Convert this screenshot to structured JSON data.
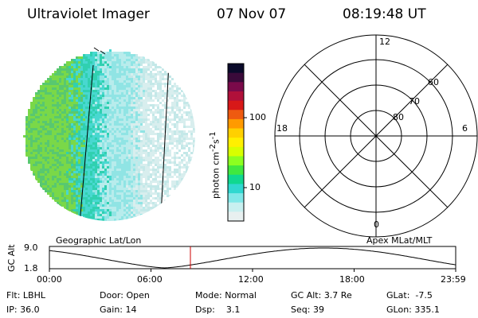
{
  "header": {
    "instrument": "Ultraviolet Imager",
    "date": "07 Nov 07",
    "time": "08:19:48 UT"
  },
  "colorbar": {
    "unit": "photon cm",
    "unit_exp1": "-2",
    "unit_mid": "s",
    "unit_exp2": "-1",
    "ticks": [
      "100",
      "10"
    ],
    "colors": [
      "#0a0a2a",
      "#3a0a3a",
      "#7a0a4a",
      "#b0103a",
      "#d81818",
      "#ee5a10",
      "#ff9a00",
      "#ffd000",
      "#fff000",
      "#d8ff00",
      "#8cff20",
      "#40e840",
      "#10d890",
      "#30d8d0",
      "#80e8e8",
      "#c8f0f0",
      "#e8f0f0"
    ]
  },
  "polar": {
    "clock_labels": [
      "12",
      "18",
      "6",
      "0"
    ],
    "lat_labels": [
      "60",
      "70",
      "80"
    ]
  },
  "altplot": {
    "left_label": "Geographic Lat/Lon",
    "right_label": "Apex MLat/MLT",
    "ylabel": "GC Alt",
    "ymax": "9.0",
    "ymin": "1.8",
    "xticks": [
      "00:00",
      "06:00",
      "12:00",
      "18:00",
      "23:59"
    ],
    "current_time_hours": 8.33
  },
  "status": {
    "filter_label": "Flt:",
    "filter_value": "LBHL",
    "ip_label": "IP:",
    "ip_value": "36.0",
    "door_label": "Door:",
    "door_value": "Open",
    "gain_label": "Gain:",
    "gain_value": "14",
    "mode_label": "Mode:",
    "mode_value": "Normal",
    "dsp_label": "Dsp:",
    "dsp_value": "3.1",
    "gcalt_label": "GC Alt:",
    "gcalt_value": "3.7 Re",
    "seq_label": "Seq:",
    "seq_value": "39",
    "glat_label": "GLat:",
    "glat_value": "-7.5",
    "glon_label": "GLon:",
    "glon_value": "335.1"
  },
  "colors": {
    "marker": "#cc0000",
    "line": "#000000"
  }
}
